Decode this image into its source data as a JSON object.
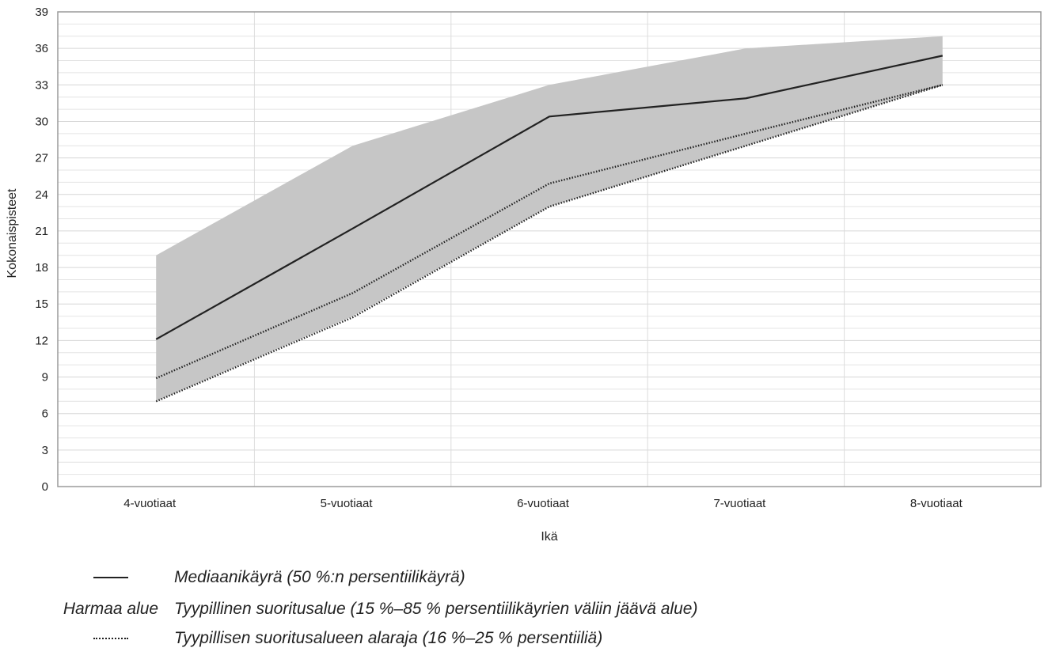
{
  "chart_data": {
    "type": "line",
    "categories": [
      "4-vuotiaat",
      "5-vuotiaat",
      "6-vuotiaat",
      "7-vuotiaat",
      "8-vuotiaat"
    ],
    "xlabel": "Ikä",
    "ylabel": "Kokonaispisteet",
    "ylim": [
      0,
      39
    ],
    "yticks": [
      0,
      3,
      6,
      9,
      12,
      15,
      18,
      21,
      24,
      27,
      30,
      33,
      36,
      39
    ],
    "grid": true,
    "band": {
      "lower": [
        7,
        14,
        23,
        28,
        33
      ],
      "upper": [
        19,
        28,
        33,
        36,
        37
      ],
      "color": "#c6c6c6"
    },
    "series": [
      {
        "values": [
          12.1,
          21.2,
          30.4,
          31.9,
          35.4
        ],
        "style": "solid",
        "color": "#222222"
      },
      {
        "values": [
          8.9,
          15.9,
          24.9,
          29.0,
          33.0
        ],
        "style": "dotted",
        "color": "#222222"
      },
      {
        "values": [
          7.0,
          13.9,
          23.0,
          28.0,
          33.0
        ],
        "style": "dotted",
        "color": "#222222"
      }
    ]
  },
  "legend": [
    {
      "key_type": "solid-line",
      "key_text": "",
      "text": "Mediaanikäyrä (50 %:n persentiilikäyrä)"
    },
    {
      "key_type": "text",
      "key_text": "Harmaa alue",
      "text": "Tyypillinen suoritusalue (15 %–85 % persentiilikäyrien väliin jäävä alue)"
    },
    {
      "key_type": "dotted-line",
      "key_text": "",
      "text": "Tyypillisen suoritusalueen alaraja (16 %–25 % persentiiliä)"
    }
  ]
}
